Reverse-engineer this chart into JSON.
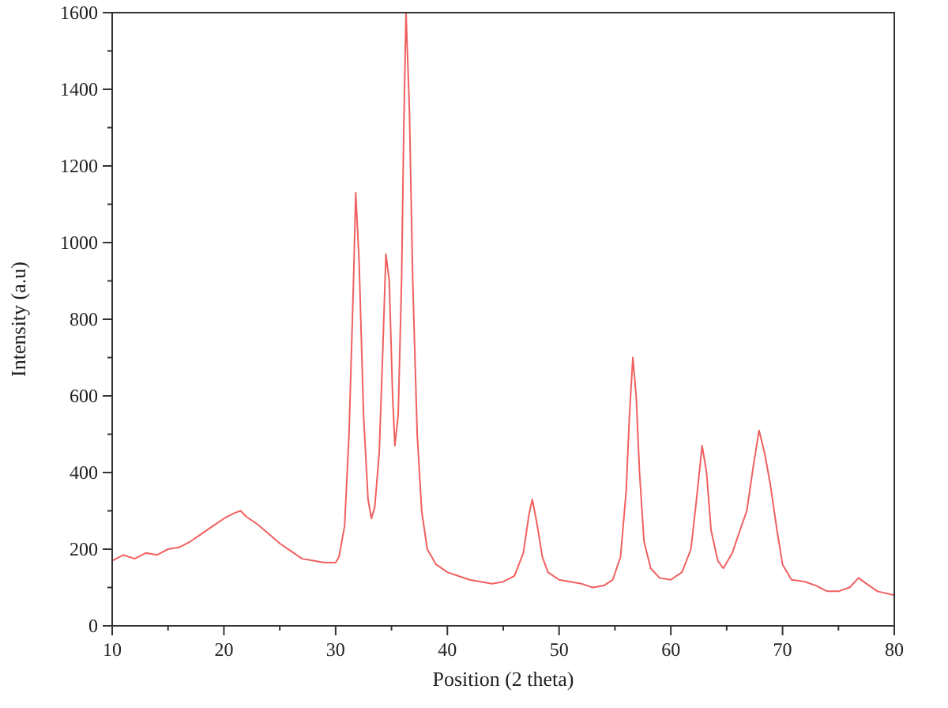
{
  "chart_data": {
    "type": "line",
    "xlabel": "Position (2 theta)",
    "ylabel": "Intensity (a.u)",
    "xlim": [
      10,
      80
    ],
    "ylim": [
      0,
      1600
    ],
    "xticks": [
      10,
      {
        "value": 15,
        "label": null
      },
      20,
      {
        "value": 25,
        "label": null
      },
      30,
      {
        "value": 35,
        "label": null
      },
      40,
      {
        "value": 45,
        "label": null
      },
      50,
      {
        "value": 55,
        "label": null
      },
      60,
      {
        "value": 65,
        "label": null
      },
      70,
      {
        "value": 75,
        "label": null
      },
      80
    ],
    "yticks": [
      0,
      {
        "value": 100,
        "label": null
      },
      200,
      {
        "value": 300,
        "label": null
      },
      400,
      {
        "value": 500,
        "label": null
      },
      600,
      {
        "value": 700,
        "label": null
      },
      800,
      {
        "value": 900,
        "label": null
      },
      1000,
      {
        "value": 1100,
        "label": null
      },
      1200,
      {
        "value": 1300,
        "label": null
      },
      1400,
      {
        "value": 1500,
        "label": null
      },
      1600
    ],
    "grid": false,
    "line_style": "solid",
    "series": [
      {
        "color": "#f06060",
        "x": [
          10,
          11,
          12,
          13,
          14,
          15,
          16,
          17,
          18,
          19,
          20,
          21,
          21.5,
          22,
          23,
          24,
          25,
          26,
          27,
          28,
          29,
          30,
          30.3,
          30.8,
          31.2,
          31.6,
          31.8,
          32.1,
          32.5,
          32.9,
          33.2,
          33.5,
          33.9,
          34.2,
          34.5,
          34.8,
          35.1,
          35.3,
          35.6,
          35.9,
          36.1,
          36.3,
          36.6,
          36.9,
          37.3,
          37.7,
          38.2,
          39,
          40,
          41,
          42,
          43,
          44,
          45,
          46,
          46.8,
          47.3,
          47.6,
          48,
          48.5,
          49,
          50,
          51,
          52,
          53,
          54,
          54.8,
          55.5,
          56,
          56.3,
          56.6,
          56.9,
          57.2,
          57.6,
          58.2,
          59,
          60,
          61,
          61.8,
          62.3,
          62.8,
          63.2,
          63.6,
          64.2,
          64.7,
          65.5,
          66.2,
          66.8,
          67.4,
          67.9,
          68.4,
          68.9,
          69.5,
          70,
          70.8,
          72,
          73,
          74,
          75,
          76,
          76.8,
          77.5,
          78.5,
          80
        ],
        "values": [
          170,
          185,
          175,
          190,
          185,
          200,
          205,
          220,
          240,
          260,
          280,
          295,
          300,
          285,
          265,
          240,
          215,
          195,
          175,
          170,
          165,
          165,
          180,
          260,
          500,
          900,
          1130,
          950,
          550,
          330,
          280,
          310,
          450,
          700,
          970,
          900,
          600,
          470,
          550,
          900,
          1300,
          1600,
          1350,
          900,
          500,
          300,
          200,
          160,
          140,
          130,
          120,
          115,
          110,
          115,
          130,
          190,
          290,
          330,
          270,
          180,
          140,
          120,
          115,
          110,
          100,
          105,
          120,
          180,
          350,
          550,
          700,
          600,
          400,
          220,
          150,
          125,
          120,
          140,
          200,
          330,
          470,
          400,
          250,
          170,
          150,
          190,
          250,
          300,
          420,
          510,
          450,
          370,
          250,
          160,
          120,
          115,
          105,
          90,
          90,
          100,
          125,
          110,
          90,
          80
        ]
      }
    ]
  }
}
